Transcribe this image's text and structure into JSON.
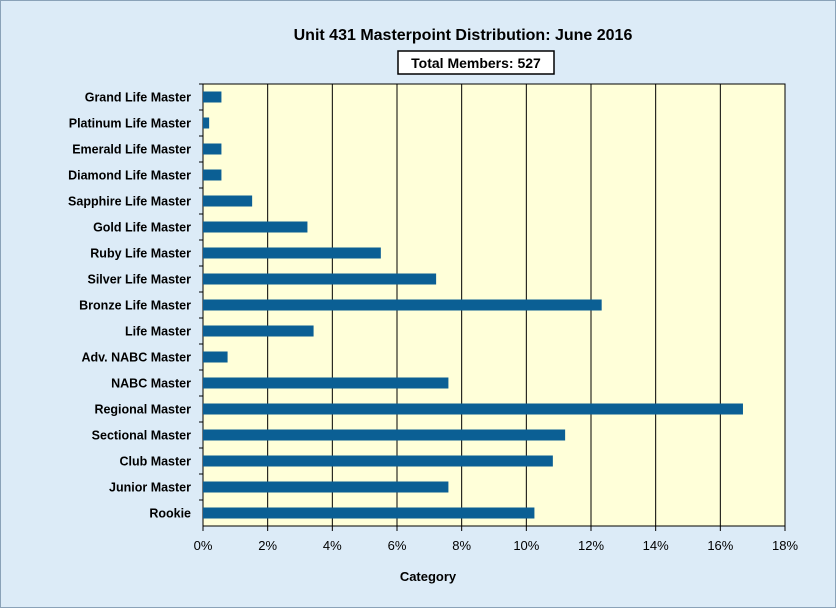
{
  "chart_data": {
    "type": "bar",
    "orientation": "horizontal",
    "title": "Unit 431 Masterpoint Distribution: June 2016",
    "annotation": "Total Members: 527",
    "xlabel": "Category",
    "ylabel": "",
    "xlim": [
      0,
      18
    ],
    "x_ticks": [
      0,
      2,
      4,
      6,
      8,
      10,
      12,
      14,
      16,
      18
    ],
    "x_tick_labels": [
      "0%",
      "2%",
      "4%",
      "6%",
      "8%",
      "10%",
      "12%",
      "14%",
      "16%",
      "18%"
    ],
    "grid": "vertical",
    "categories": [
      "Grand Life Master",
      "Platinum Life Master",
      "Emerald Life Master",
      "Diamond Life Master",
      "Sapphire Life Master",
      "Gold Life Master",
      "Ruby Life Master",
      "Silver Life Master",
      "Bronze Life Master",
      "Life Master",
      "Adv. NABC Master",
      "NABC Master",
      "Regional Master",
      "Sectional Master",
      "Club Master",
      "Junior Master",
      "Rookie"
    ],
    "values": [
      0.57,
      0.19,
      0.57,
      0.57,
      1.52,
      3.23,
      5.5,
      7.21,
      12.33,
      3.42,
      0.76,
      7.59,
      16.7,
      11.2,
      10.82,
      7.59,
      10.25
    ],
    "colors": {
      "bar": "#0b5f94",
      "plot_background": "#ffffd9",
      "page_background": "#dcebf7",
      "grid": "#000000"
    }
  }
}
